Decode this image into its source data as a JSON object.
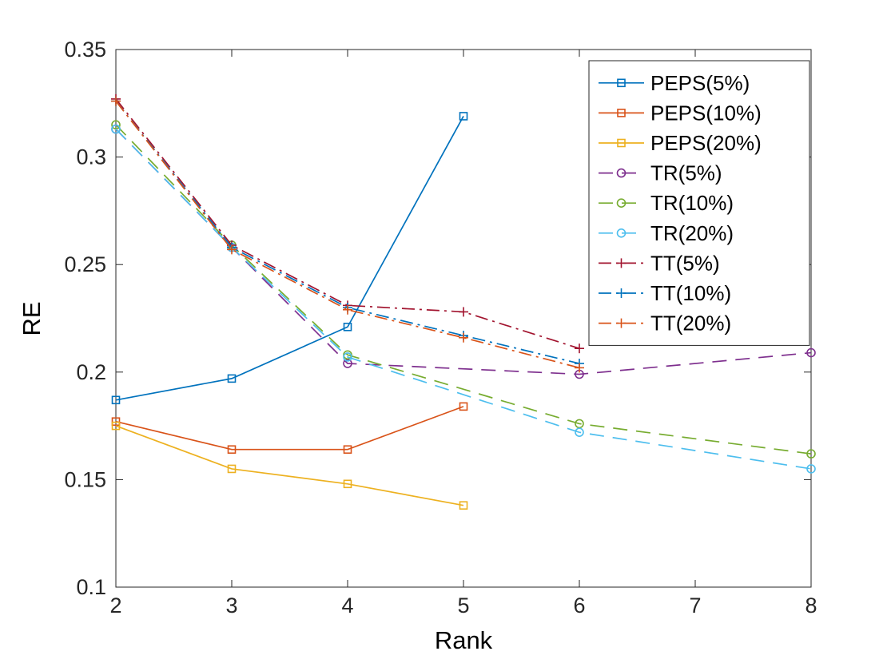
{
  "chart_data": {
    "type": "line",
    "title": "",
    "xlabel": "Rank",
    "ylabel": "RE",
    "xlim": [
      2,
      8
    ],
    "ylim": [
      0.1,
      0.35
    ],
    "xticks": [
      2,
      3,
      4,
      5,
      6,
      7,
      8
    ],
    "xtick_labels": [
      "2",
      "3",
      "4",
      "5",
      "6",
      "7",
      "8"
    ],
    "yticks": [
      0.1,
      0.15,
      0.2,
      0.25,
      0.3,
      0.35
    ],
    "ytick_labels": [
      "0.1",
      "0.15",
      "0.2",
      "0.25",
      "0.3",
      "0.35"
    ],
    "grid": false,
    "legend_position": "northeast",
    "axis_color": "#262626",
    "background": "#ffffff",
    "series": [
      {
        "name": "PEPS(5%)",
        "color": "#0072BD",
        "style": "solid",
        "marker": "square",
        "x": [
          2,
          3,
          4,
          5
        ],
        "y": [
          0.187,
          0.197,
          0.221,
          0.319
        ]
      },
      {
        "name": "PEPS(10%)",
        "color": "#D95319",
        "style": "solid",
        "marker": "square",
        "x": [
          2,
          3,
          4,
          5
        ],
        "y": [
          0.177,
          0.164,
          0.164,
          0.184
        ]
      },
      {
        "name": "PEPS(20%)",
        "color": "#EDB120",
        "style": "solid",
        "marker": "square",
        "x": [
          2,
          3,
          4,
          5
        ],
        "y": [
          0.175,
          0.155,
          0.148,
          0.138
        ]
      },
      {
        "name": "TR(5%)",
        "color": "#7E2F8E",
        "style": "dashed",
        "marker": "circle",
        "x": [
          2,
          3,
          4,
          6,
          8
        ],
        "y": [
          0.313,
          0.258,
          0.204,
          0.199,
          0.209
        ]
      },
      {
        "name": "TR(10%)",
        "color": "#77AC30",
        "style": "dashed",
        "marker": "circle",
        "x": [
          2,
          3,
          4,
          6,
          8
        ],
        "y": [
          0.315,
          0.259,
          0.208,
          0.176,
          0.162
        ]
      },
      {
        "name": "TR(20%)",
        "color": "#4DBEEE",
        "style": "dashed",
        "marker": "circle",
        "x": [
          2,
          3,
          4,
          6,
          8
        ],
        "y": [
          0.313,
          0.258,
          0.207,
          0.172,
          0.155
        ]
      },
      {
        "name": "TT(5%)",
        "color": "#A2142F",
        "style": "dashdot",
        "marker": "plus",
        "x": [
          2,
          3,
          4,
          5,
          6
        ],
        "y": [
          0.327,
          0.259,
          0.231,
          0.228,
          0.211
        ]
      },
      {
        "name": "TT(10%)",
        "color": "#0072BD",
        "style": "dashdot",
        "marker": "plus",
        "x": [
          2,
          3,
          4,
          5,
          6
        ],
        "y": [
          0.326,
          0.258,
          0.23,
          0.217,
          0.204
        ]
      },
      {
        "name": "TT(20%)",
        "color": "#D95319",
        "style": "dashdot",
        "marker": "plus",
        "x": [
          2,
          3,
          4,
          5,
          6
        ],
        "y": [
          0.326,
          0.257,
          0.229,
          0.216,
          0.202
        ]
      }
    ]
  }
}
